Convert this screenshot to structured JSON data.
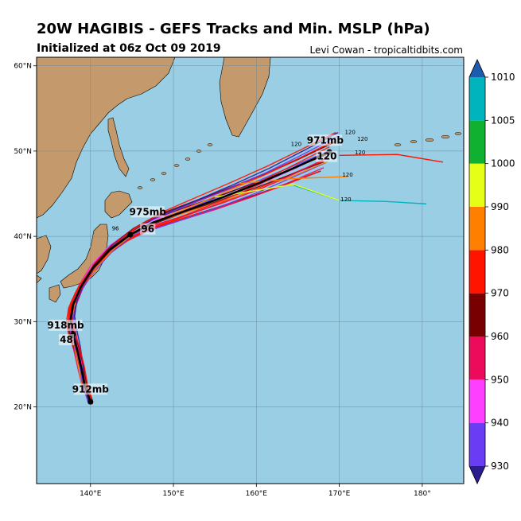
{
  "header": {
    "title": "20W HAGIBIS - GEFS Tracks and Min. MSLP (hPa)",
    "subtitle": "Initialized at 06z Oct 09 2019",
    "credit": "Levi Cowan - tropicaltidbits.com"
  },
  "map": {
    "lon_range": [
      133.5,
      185
    ],
    "lat_range": [
      11,
      61
    ],
    "x_ticks": [
      {
        "lon": 140,
        "label": "140°E"
      },
      {
        "lon": 150,
        "label": "150°E"
      },
      {
        "lon": 160,
        "label": "160°E"
      },
      {
        "lon": 170,
        "label": "170°E"
      },
      {
        "lon": 180,
        "label": "180°"
      }
    ],
    "y_ticks": [
      {
        "lat": 20,
        "label": "20°N"
      },
      {
        "lat": 30,
        "label": "30°N"
      },
      {
        "lat": 40,
        "label": "40°N"
      },
      {
        "lat": 50,
        "label": "50°N"
      },
      {
        "lat": 60,
        "label": "60°N"
      }
    ],
    "colors": {
      "ocean": "#99cee4",
      "land": "#c49a6c",
      "grid": "#6b8ea0"
    }
  },
  "mean_track": [
    [
      140.0,
      20.6
    ],
    [
      139.3,
      22.5
    ],
    [
      138.9,
      24.5
    ],
    [
      138.4,
      26.7
    ],
    [
      137.9,
      28.5
    ],
    [
      137.6,
      30.2
    ],
    [
      137.9,
      32.0
    ],
    [
      138.8,
      34.0
    ],
    [
      140.3,
      36.3
    ],
    [
      142.3,
      38.4
    ],
    [
      144.8,
      40.2
    ],
    [
      147.5,
      41.6
    ],
    [
      151.5,
      43.0
    ],
    [
      156.0,
      44.6
    ],
    [
      160.5,
      46.3
    ],
    [
      164.5,
      48.0
    ],
    [
      168.8,
      49.9
    ]
  ],
  "annotations": [
    {
      "label": "912mb",
      "lon": 140.0,
      "lat": 21.7
    },
    {
      "label": "918mb",
      "lon": 137.0,
      "lat": 29.2
    },
    {
      "label": "48",
      "lon": 137.1,
      "lat": 27.5
    },
    {
      "label": "975mb",
      "lon": 146.9,
      "lat": 42.5
    },
    {
      "label": "96",
      "lon": 146.9,
      "lat": 40.5
    },
    {
      "label": "971mb",
      "lon": 168.3,
      "lat": 50.9
    },
    {
      "label": "120",
      "lon": 168.5,
      "lat": 49.0
    }
  ],
  "small_labels": [
    {
      "label": "120",
      "lon": 170.8,
      "lat": 44.1
    },
    {
      "label": "120",
      "lon": 171.0,
      "lat": 47.0
    },
    {
      "label": "120",
      "lon": 172.5,
      "lat": 49.6
    },
    {
      "label": "120",
      "lon": 172.8,
      "lat": 51.2
    },
    {
      "label": "120",
      "lon": 171.3,
      "lat": 52.0
    },
    {
      "label": "120",
      "lon": 164.8,
      "lat": 50.6
    },
    {
      "label": "96",
      "lon": 143.0,
      "lat": 40.7
    }
  ],
  "colorbar": {
    "levels": [
      930,
      940,
      950,
      960,
      970,
      980,
      990,
      1000,
      1005,
      1010
    ],
    "colors": [
      "#6a3cf3",
      "#ff3fff",
      "#ec0a5a",
      "#780000",
      "#ff1400",
      "#ff7f00",
      "#e6ff17",
      "#10b030",
      "#00b4be"
    ],
    "under_color": "#2b1c90",
    "over_color": "#1c5cb0"
  }
}
